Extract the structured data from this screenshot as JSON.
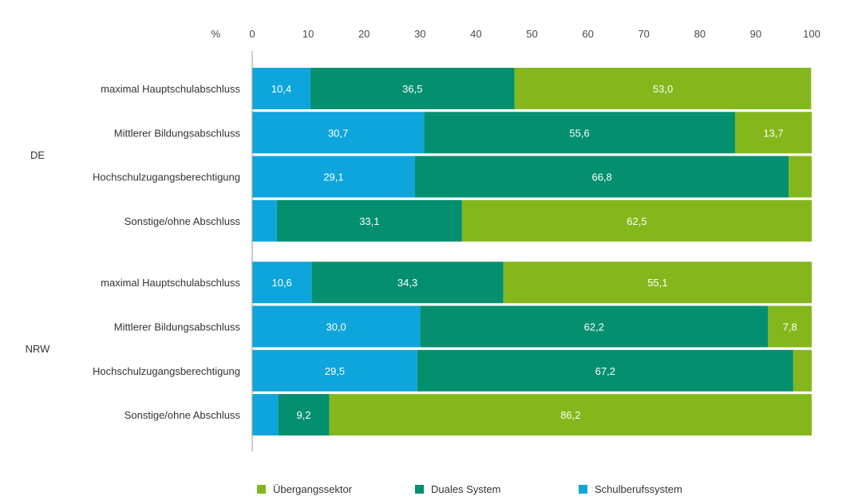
{
  "chart_data": {
    "type": "bar",
    "orientation": "horizontal",
    "stacked": true,
    "unit_label": "%",
    "xlim": [
      0,
      100
    ],
    "x_ticks": [
      0,
      10,
      20,
      30,
      40,
      50,
      60,
      70,
      80,
      90,
      100
    ],
    "x_tick_labels": [
      "0",
      "10",
      "20",
      "30",
      "40",
      "50",
      "60",
      "70",
      "80",
      "90",
      "100"
    ],
    "x_axis_position": "top",
    "grid": false,
    "legend_position": "bottom",
    "groups": [
      {
        "label": "DE",
        "categories": [
          "maximal Hauptschulabschluss",
          "Mittlerer Bildungsabschluss",
          "Hochschulzugangsberechtigung",
          "Sonstige/ohne Abschluss"
        ]
      },
      {
        "label": "NRW",
        "categories": [
          "maximal Hauptschulabschluss",
          "Mittlerer Bildungsabschluss",
          "Hochschulzugangsberechtigung",
          "Sonstige/ohne Abschluss"
        ]
      }
    ],
    "series": [
      {
        "name": "Schulberufssystem",
        "color": "#0ea5dc",
        "values": [
          10.4,
          30.7,
          29.1,
          4.4,
          10.6,
          30.0,
          29.5,
          4.6
        ],
        "labels": [
          "10,4",
          "30,7",
          "29,1",
          "",
          "10,6",
          "30,0",
          "29,5",
          ""
        ]
      },
      {
        "name": "Duales System",
        "color": "#04906f",
        "values": [
          36.5,
          55.6,
          66.8,
          33.1,
          34.3,
          62.2,
          67.2,
          9.2
        ],
        "labels": [
          "36,5",
          "55,6",
          "66,8",
          "33,1",
          "34,3",
          "62,2",
          "67,2",
          "9,2"
        ]
      },
      {
        "name": "Übergangssektor",
        "color": "#84b71c",
        "values": [
          53.0,
          13.7,
          4.1,
          62.5,
          55.1,
          7.8,
          3.3,
          86.2
        ],
        "labels": [
          "53,0",
          "13,7",
          "",
          "62,5",
          "55,1",
          "7,8",
          "",
          "86,2"
        ]
      }
    ],
    "legend": [
      {
        "name": "Übergangssektor",
        "color": "#84b71c"
      },
      {
        "name": "Duales System",
        "color": "#04906f"
      },
      {
        "name": "Schulberufssystem",
        "color": "#0ea5dc"
      }
    ]
  }
}
